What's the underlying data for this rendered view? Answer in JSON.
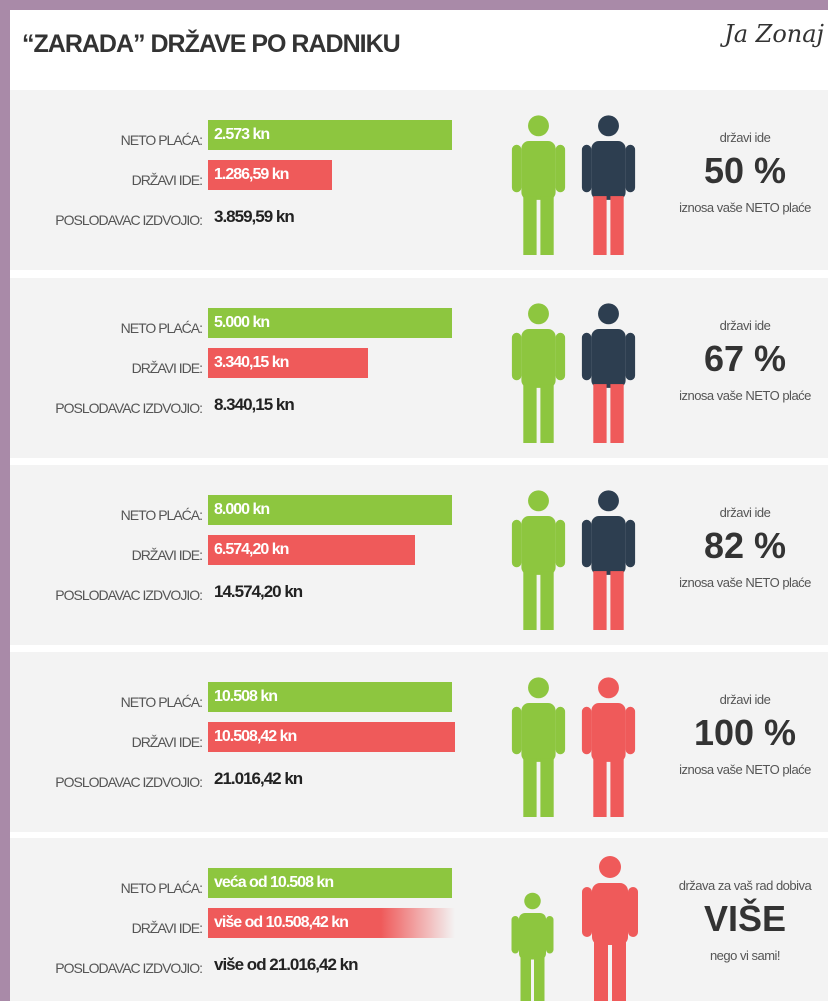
{
  "title": "“ZARADA” DRŽAVE PO RADNIKU",
  "signature": "Ja Zonaj",
  "labels": [
    "NETO PLAĆA:",
    "DRŽAVI IDE:",
    "POSLODAVAC IZDVOJIO:"
  ],
  "rows": [
    {
      "neto": "2.573 kn",
      "drzavi": "1.286,59 kn",
      "poslodavac": "3.859,59 kn",
      "right_top": "državi ide",
      "right_big": "50 %",
      "right_bottom": "iznosa vaše NETO plaće"
    },
    {
      "neto": "5.000 kn",
      "drzavi": "3.340,15 kn",
      "poslodavac": "8.340,15 kn",
      "right_top": "državi ide",
      "right_big": "67 %",
      "right_bottom": "iznosa vaše NETO plaće"
    },
    {
      "neto": "8.000 kn",
      "drzavi": "6.574,20 kn",
      "poslodavac": "14.574,20 kn",
      "right_top": "državi ide",
      "right_big": "82 %",
      "right_bottom": "iznosa vaše NETO plaće"
    },
    {
      "neto": "10.508 kn",
      "drzavi": "10.508,42 kn",
      "poslodavac": "21.016,42 kn",
      "right_top": "državi ide",
      "right_big": "100 %",
      "right_bottom": "iznosa vaše NETO plaće"
    },
    {
      "neto": "veća od 10.508 kn",
      "drzavi": "više od 10.508,42 kn",
      "poslodavac": "više od 21.016,42 kn",
      "right_top": "država za vaš rad dobiva",
      "right_big": "VIŠE",
      "right_bottom": "nego vi sami!"
    }
  ]
}
